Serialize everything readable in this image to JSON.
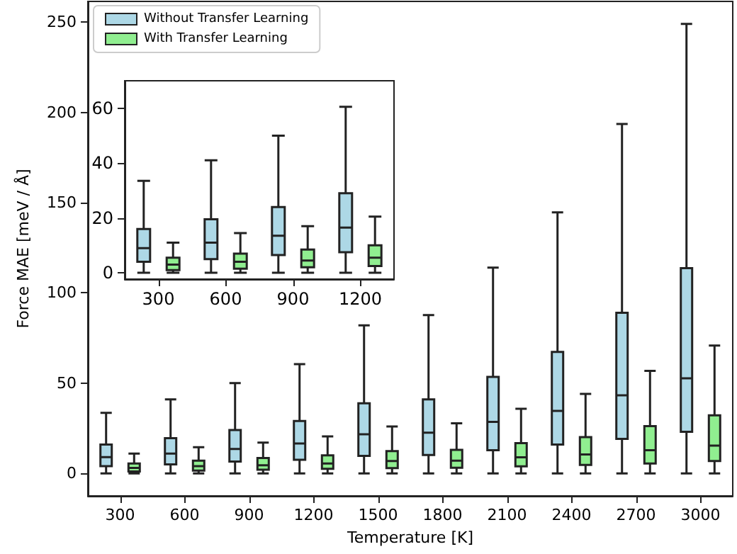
{
  "chart_data": [
    {
      "type": "box",
      "xlabel": "Temperature [K]",
      "ylabel": "Force MAE [meV / Å]",
      "categories": [
        "300",
        "600",
        "900",
        "1200",
        "1500",
        "1800",
        "2100",
        "2400",
        "2700",
        "3000"
      ],
      "ylim": [
        -12.5,
        261.5
      ],
      "yticks": [
        0,
        50,
        100,
        150,
        200,
        250
      ],
      "legend": "top left",
      "grid": false,
      "series": [
        {
          "name": "Without Transfer Learning",
          "color": "#add8e6",
          "boxes": [
            {
              "low": 0,
              "q1": 4,
              "median": 9,
              "q3": 16,
              "high": 33.5
            },
            {
              "low": 0,
              "q1": 5,
              "median": 11,
              "q3": 19.5,
              "high": 41
            },
            {
              "low": 0,
              "q1": 6.5,
              "median": 13.5,
              "q3": 24,
              "high": 50
            },
            {
              "low": 0,
              "q1": 7.5,
              "median": 16.5,
              "q3": 29,
              "high": 60.5
            },
            {
              "low": 0,
              "q1": 9.7,
              "median": 21.7,
              "q3": 38.8,
              "high": 82
            },
            {
              "low": 0,
              "q1": 10.2,
              "median": 22.5,
              "q3": 41,
              "high": 87.7
            },
            {
              "low": 0,
              "q1": 12.8,
              "median": 28.5,
              "q3": 53.4,
              "high": 114
            },
            {
              "low": 0,
              "q1": 16,
              "median": 34.6,
              "q3": 67.3,
              "high": 144.6
            },
            {
              "low": 0,
              "q1": 19.1,
              "median": 43.2,
              "q3": 89,
              "high": 193.6
            },
            {
              "low": 0,
              "q1": 23,
              "median": 52.7,
              "q3": 113.7,
              "high": 249
            }
          ]
        },
        {
          "name": "With Transfer Learning",
          "color": "#90ee90",
          "boxes": [
            {
              "low": 0,
              "q1": 1,
              "median": 3,
              "q3": 5.5,
              "high": 11
            },
            {
              "low": 0,
              "q1": 1.5,
              "median": 4,
              "q3": 7,
              "high": 14.5
            },
            {
              "low": 0,
              "q1": 2,
              "median": 4.5,
              "q3": 8.5,
              "high": 17
            },
            {
              "low": 0,
              "q1": 2.5,
              "median": 5.5,
              "q3": 10,
              "high": 20.5
            },
            {
              "low": 0,
              "q1": 2.9,
              "median": 6.8,
              "q3": 12.3,
              "high": 26
            },
            {
              "low": 0,
              "q1": 3.1,
              "median": 7,
              "q3": 13,
              "high": 27.7
            },
            {
              "low": 0,
              "q1": 3.9,
              "median": 8.9,
              "q3": 16.7,
              "high": 35.8
            },
            {
              "low": 0,
              "q1": 4.7,
              "median": 10.5,
              "q3": 20.1,
              "high": 44
            },
            {
              "low": 0,
              "q1": 5.5,
              "median": 12.8,
              "q3": 26.2,
              "high": 56.8
            },
            {
              "low": 0,
              "q1": 6.8,
              "median": 15.4,
              "q3": 32.2,
              "high": 70.8
            }
          ]
        }
      ]
    },
    {
      "type": "box",
      "categories": [
        "300",
        "600",
        "900",
        "1200"
      ],
      "ylim": [
        -2.3,
        70
      ],
      "yticks": [
        0,
        20,
        40,
        60
      ],
      "grid": false,
      "series": [
        {
          "color": "#add8e6",
          "boxes": [
            {
              "low": 0,
              "q1": 4,
              "median": 9,
              "q3": 16,
              "high": 33.5
            },
            {
              "low": 0,
              "q1": 5,
              "median": 11,
              "q3": 19.5,
              "high": 41
            },
            {
              "low": 0,
              "q1": 6.5,
              "median": 13.5,
              "q3": 24,
              "high": 50
            },
            {
              "low": 0,
              "q1": 7.5,
              "median": 16.5,
              "q3": 29,
              "high": 60.5
            }
          ]
        },
        {
          "color": "#90ee90",
          "boxes": [
            {
              "low": 0,
              "q1": 1,
              "median": 3,
              "q3": 5.5,
              "high": 11
            },
            {
              "low": 0,
              "q1": 1.5,
              "median": 4,
              "q3": 7,
              "high": 14.5
            },
            {
              "low": 0,
              "q1": 2,
              "median": 4.5,
              "q3": 8.5,
              "high": 17
            },
            {
              "low": 0,
              "q1": 2.5,
              "median": 5.5,
              "q3": 10,
              "high": 20.5
            }
          ]
        }
      ]
    }
  ]
}
